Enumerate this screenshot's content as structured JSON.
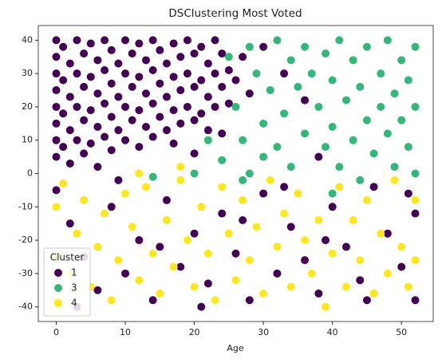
{
  "chart_data": {
    "type": "scatter",
    "title": "DSClustering Most Voted",
    "xlabel": "Age",
    "legend_title": "Cluster",
    "legend": "lower left",
    "xlim": [
      -2.6,
      54.6
    ],
    "ylim": [
      -44.4,
      44.4
    ],
    "xticks": [
      0,
      10,
      20,
      30,
      40,
      50
    ],
    "yticks": [
      -40,
      -30,
      -20,
      -10,
      0,
      10,
      20,
      30,
      40
    ],
    "series": [
      {
        "name": "1",
        "color": "#440154",
        "x": [
          0,
          0,
          0,
          0,
          0,
          0,
          0,
          0,
          1,
          1,
          1,
          1,
          2,
          2,
          2,
          2,
          3,
          3,
          3,
          3,
          4,
          4,
          4,
          4,
          5,
          5,
          5,
          5,
          6,
          6,
          6,
          6,
          7,
          7,
          7,
          7,
          8,
          8,
          8,
          8,
          9,
          9,
          9,
          10,
          10,
          10,
          10,
          11,
          11,
          11,
          12,
          12,
          12,
          12,
          13,
          13,
          13,
          14,
          14,
          14,
          14,
          15,
          15,
          15,
          16,
          16,
          16,
          17,
          17,
          17,
          17,
          18,
          18,
          18,
          19,
          19,
          19,
          20,
          20,
          20,
          20,
          21,
          21,
          21,
          22,
          22,
          22,
          23,
          23,
          23,
          24,
          24,
          24,
          25,
          25,
          26,
          27,
          28,
          30,
          33,
          36,
          38,
          0,
          2,
          4,
          6,
          8,
          10,
          12,
          14,
          16,
          18,
          20,
          22,
          24,
          26,
          28,
          30,
          32,
          34,
          36,
          38,
          40,
          42,
          44,
          46,
          48,
          50,
          52,
          52,
          3,
          9,
          15,
          21,
          27,
          33,
          39,
          45,
          51
        ],
        "y": [
          40,
          35,
          30,
          25,
          20,
          15,
          10,
          5,
          38,
          28,
          18,
          8,
          33,
          23,
          13,
          3,
          40,
          30,
          20,
          10,
          36,
          26,
          16,
          6,
          39,
          29,
          19,
          9,
          34,
          24,
          14,
          2,
          40,
          31,
          21,
          11,
          37,
          27,
          17,
          7,
          33,
          23,
          13,
          40,
          30,
          20,
          10,
          36,
          26,
          16,
          39,
          29,
          19,
          8,
          34,
          24,
          14,
          40,
          31,
          21,
          11,
          37,
          27,
          17,
          33,
          23,
          13,
          39,
          29,
          19,
          9,
          35,
          25,
          15,
          40,
          30,
          20,
          36,
          26,
          16,
          6,
          38,
          28,
          18,
          33,
          23,
          13,
          40,
          30,
          20,
          36,
          26,
          12,
          31,
          21,
          28,
          35,
          24,
          38,
          30,
          22,
          5,
          -5,
          -15,
          -25,
          -35,
          -10,
          -30,
          -20,
          -38,
          -8,
          -28,
          -18,
          -33,
          -12,
          -24,
          -38,
          -6,
          -30,
          -16,
          -26,
          -36,
          -10,
          -22,
          -32,
          -4,
          -18,
          -28,
          -12,
          -38,
          -40,
          -2,
          -22,
          -40,
          -14,
          -4,
          -20,
          -38,
          -6
        ]
      },
      {
        "name": "3",
        "color": "#35b779",
        "x": [
          25,
          26,
          27,
          28,
          29,
          30,
          30,
          31,
          32,
          32,
          33,
          34,
          34,
          35,
          36,
          36,
          37,
          38,
          39,
          39,
          40,
          40,
          41,
          41,
          42,
          43,
          43,
          44,
          45,
          45,
          46,
          47,
          47,
          48,
          48,
          49,
          49,
          50,
          50,
          51,
          51,
          52,
          52,
          52,
          22,
          20,
          14,
          24,
          27,
          44,
          40,
          28
        ],
        "y": [
          35,
          20,
          10,
          38,
          30,
          15,
          5,
          25,
          40,
          8,
          18,
          34,
          2,
          26,
          38,
          12,
          30,
          20,
          36,
          8,
          28,
          14,
          40,
          2,
          22,
          34,
          10,
          26,
          38,
          16,
          6,
          30,
          20,
          40,
          12,
          24,
          2,
          34,
          16,
          28,
          8,
          38,
          20,
          0,
          10,
          0,
          -1,
          4,
          -2,
          -2,
          -6,
          0
        ]
      },
      {
        "name": "4",
        "color": "#fde725",
        "x": [
          0,
          0,
          0,
          1,
          2,
          3,
          4,
          5,
          6,
          7,
          8,
          9,
          10,
          11,
          12,
          13,
          14,
          15,
          16,
          17,
          18,
          19,
          20,
          21,
          22,
          23,
          24,
          25,
          26,
          27,
          28,
          29,
          30,
          31,
          32,
          33,
          34,
          35,
          36,
          37,
          38,
          39,
          40,
          41,
          42,
          43,
          44,
          45,
          46,
          47,
          48,
          49,
          50,
          51,
          52,
          52,
          18,
          12
        ],
        "y": [
          -10,
          -25,
          -38,
          -3,
          -30,
          -18,
          -8,
          -34,
          -22,
          -12,
          -38,
          -26,
          -6,
          -16,
          -32,
          -4,
          -24,
          -36,
          -14,
          -28,
          -2,
          -20,
          -34,
          -10,
          -24,
          -38,
          -4,
          -18,
          -32,
          -8,
          -26,
          -16,
          -36,
          -2,
          -22,
          -12,
          -34,
          -6,
          -20,
          -30,
          -14,
          -40,
          -24,
          -4,
          -34,
          -14,
          -26,
          -8,
          -36,
          -18,
          -30,
          -2,
          -22,
          -34,
          -8,
          -26,
          2,
          0
        ]
      }
    ]
  }
}
